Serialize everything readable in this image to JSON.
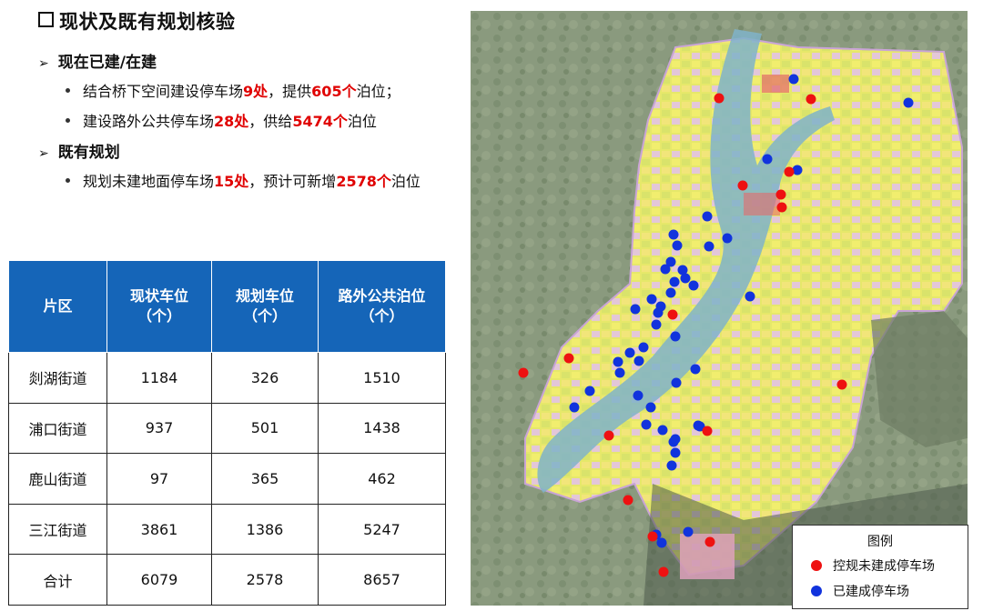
{
  "title": "现状及既有规划核验",
  "section1": {
    "heading": "现在已建/在建",
    "bullet1": {
      "a": "结合桥下空间建设停车场",
      "b": "9处",
      "c": "，提供",
      "d": "605个",
      "e": "泊位；"
    },
    "bullet2": {
      "a": "建设路外公共停车场",
      "b": "28处",
      "c": "，供给",
      "d": "5474个",
      "e": "泊位"
    }
  },
  "section2": {
    "heading": "既有规划",
    "bullet1": {
      "a": "规划未建地面停车场",
      "b": "15处",
      "c": "，预计可新增",
      "d": "2578个",
      "e": "泊位"
    }
  },
  "table": {
    "headers": [
      {
        "l1": "片区",
        "l2": ""
      },
      {
        "l1": "现状车位",
        "l2": "（个）"
      },
      {
        "l1": "规划车位",
        "l2": "（个）"
      },
      {
        "l1": "路外公共泊位",
        "l2": "（个）"
      }
    ],
    "rows": [
      [
        "剡湖街道",
        "1184",
        "326",
        "1510"
      ],
      [
        "浦口街道",
        "937",
        "501",
        "1438"
      ],
      [
        "鹿山街道",
        "97",
        "365",
        "462"
      ],
      [
        "三江街道",
        "3861",
        "1386",
        "5247"
      ],
      [
        "合计",
        "6079",
        "2578",
        "8657"
      ]
    ]
  },
  "legend": {
    "title": "图例",
    "planned_label": "控规未建成停车场",
    "built_label": "已建成停车场",
    "planned_color": "#ee1111",
    "built_color": "#1133dd"
  },
  "map": {
    "planned_count": 15,
    "built_count": 28
  }
}
